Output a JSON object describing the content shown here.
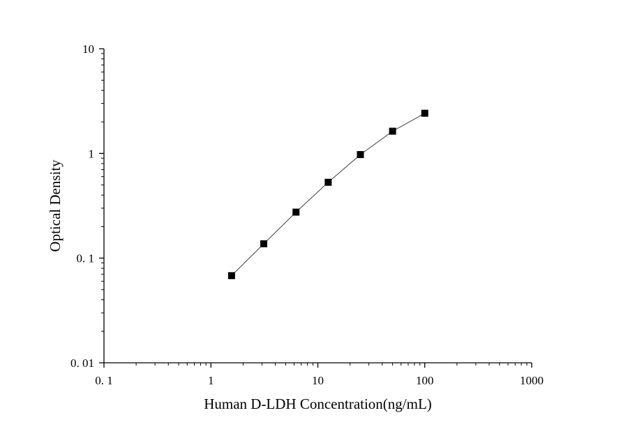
{
  "chart_data": {
    "type": "scatter",
    "title": "",
    "xlabel": "Human D-LDH Concentration(ng/mL)",
    "ylabel": "Optical Density",
    "xscale": "log",
    "yscale": "log",
    "xlim": [
      0.1,
      1000
    ],
    "ylim": [
      0.01,
      10
    ],
    "grid": false,
    "legend": "none",
    "x_ticks": [
      {
        "value": 0.1,
        "label": "0. 1"
      },
      {
        "value": 1,
        "label": "1"
      },
      {
        "value": 10,
        "label": "10"
      },
      {
        "value": 100,
        "label": "100"
      },
      {
        "value": 1000,
        "label": "1000"
      }
    ],
    "y_ticks": [
      {
        "value": 0.01,
        "label": "0. 01"
      },
      {
        "value": 0.1,
        "label": "0. 1"
      },
      {
        "value": 1,
        "label": "1"
      },
      {
        "value": 10,
        "label": "10"
      }
    ],
    "series": [
      {
        "marker": "square",
        "connected": true,
        "color": "#000000",
        "line_color": "#404040",
        "points": [
          {
            "x": 1.56,
            "y": 0.068
          },
          {
            "x": 3.12,
            "y": 0.137
          },
          {
            "x": 6.25,
            "y": 0.275
          },
          {
            "x": 12.5,
            "y": 0.53
          },
          {
            "x": 25,
            "y": 0.975
          },
          {
            "x": 50,
            "y": 1.63
          },
          {
            "x": 100,
            "y": 2.42
          }
        ]
      }
    ]
  }
}
